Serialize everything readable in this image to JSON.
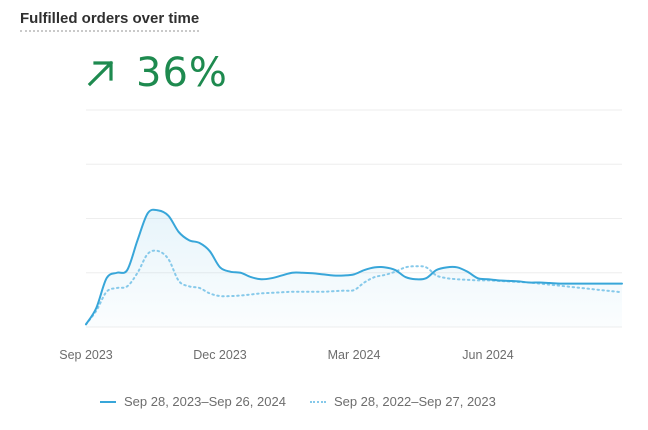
{
  "title": "Fulfilled orders over time",
  "kpi": {
    "value": "36%",
    "direction": "up",
    "icon": "arrow-up-right-icon",
    "color": "#1e8a4f"
  },
  "chart_data": {
    "type": "area",
    "x_ticks": [
      "Sep 2023",
      "Dec 2023",
      "Mar 2024",
      "Jun 2024"
    ],
    "x_tick_positions": [
      0,
      13,
      26,
      39
    ],
    "ylim": [
      0,
      4
    ],
    "grid": true,
    "legend_position": "bottom",
    "series": [
      {
        "name": "Sep 28, 2023–Sep 26, 2024",
        "style": "solid",
        "color": "#38a6d9",
        "x": [
          0,
          1,
          2,
          3,
          4,
          5,
          6,
          7,
          8,
          9,
          10,
          11,
          12,
          13,
          14,
          15,
          16,
          17,
          18,
          19,
          20,
          21,
          22,
          23,
          24,
          25,
          26,
          27,
          28,
          29,
          30,
          31,
          32,
          33,
          34,
          35,
          36,
          37,
          38,
          39,
          40,
          41,
          42,
          43,
          44,
          45,
          46,
          47,
          48,
          49,
          50,
          51,
          52
        ],
        "values": [
          0.05,
          0.35,
          0.9,
          1.0,
          1.05,
          1.6,
          2.1,
          2.15,
          2.05,
          1.75,
          1.6,
          1.55,
          1.4,
          1.1,
          1.02,
          1.0,
          0.92,
          0.88,
          0.9,
          0.95,
          1.0,
          1.0,
          0.99,
          0.97,
          0.95,
          0.95,
          0.97,
          1.05,
          1.1,
          1.1,
          1.05,
          0.92,
          0.88,
          0.9,
          1.05,
          1.1,
          1.1,
          1.02,
          0.9,
          0.88,
          0.86,
          0.85,
          0.84,
          0.82,
          0.82,
          0.81,
          0.8,
          0.8,
          0.8,
          0.8,
          0.8,
          0.8,
          0.8
        ]
      },
      {
        "name": "Sep 28, 2022–Sep 27, 2023",
        "style": "dotted",
        "color": "#86c9ea",
        "x": [
          0,
          1,
          2,
          3,
          4,
          5,
          6,
          7,
          8,
          9,
          10,
          11,
          12,
          13,
          14,
          15,
          16,
          17,
          18,
          19,
          20,
          21,
          22,
          23,
          24,
          25,
          26,
          27,
          28,
          29,
          30,
          31,
          32,
          33,
          34,
          35,
          36,
          37,
          38,
          39,
          40,
          41,
          42,
          43,
          44,
          45,
          46,
          47,
          48,
          49,
          50,
          51,
          52
        ],
        "values": [
          0.05,
          0.3,
          0.65,
          0.72,
          0.75,
          1.0,
          1.35,
          1.4,
          1.25,
          0.85,
          0.75,
          0.72,
          0.62,
          0.57,
          0.57,
          0.58,
          0.6,
          0.62,
          0.63,
          0.64,
          0.65,
          0.65,
          0.65,
          0.65,
          0.66,
          0.67,
          0.68,
          0.82,
          0.92,
          0.96,
          1.02,
          1.1,
          1.12,
          1.1,
          0.95,
          0.9,
          0.88,
          0.87,
          0.86,
          0.86,
          0.85,
          0.84,
          0.83,
          0.82,
          0.8,
          0.78,
          0.76,
          0.74,
          0.72,
          0.7,
          0.68,
          0.66,
          0.64
        ]
      }
    ]
  }
}
